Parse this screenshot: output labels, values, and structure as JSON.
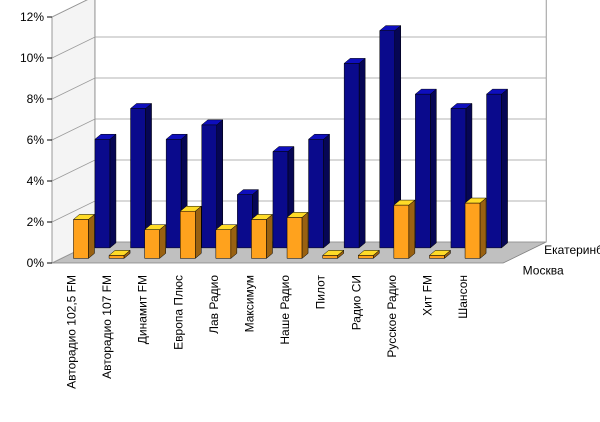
{
  "chart_data": {
    "type": "bar",
    "title": "",
    "xlabel": "",
    "ylabel": "",
    "ylim": [
      0,
      12
    ],
    "y_ticks": [
      "0%",
      "2%",
      "4%",
      "6%",
      "8%",
      "10%",
      "12%"
    ],
    "grid": true,
    "three_d": true,
    "categories": [
      "Авторадио 102,5 FM",
      "Авторадио 107 FM",
      "Динамит FM",
      "Европа Плюс",
      "Лав Радио",
      "Максимум",
      "Наше Радио",
      "Пилот",
      "Радио СИ",
      "Русское Радио",
      "Хит FM",
      "Шансон"
    ],
    "series": [
      {
        "name": "Екатеринбург",
        "color": "#0a0a8c",
        "values": [
          5.3,
          6.8,
          5.3,
          6.0,
          2.6,
          4.7,
          5.3,
          9.0,
          10.6,
          7.5,
          6.8,
          7.5
        ]
      },
      {
        "name": "Москва",
        "color": "#ffa21d",
        "values": [
          1.9,
          0.1,
          1.4,
          2.3,
          1.4,
          1.9,
          2.0,
          0.1,
          0.1,
          2.6,
          0.1,
          2.7
        ]
      }
    ]
  }
}
